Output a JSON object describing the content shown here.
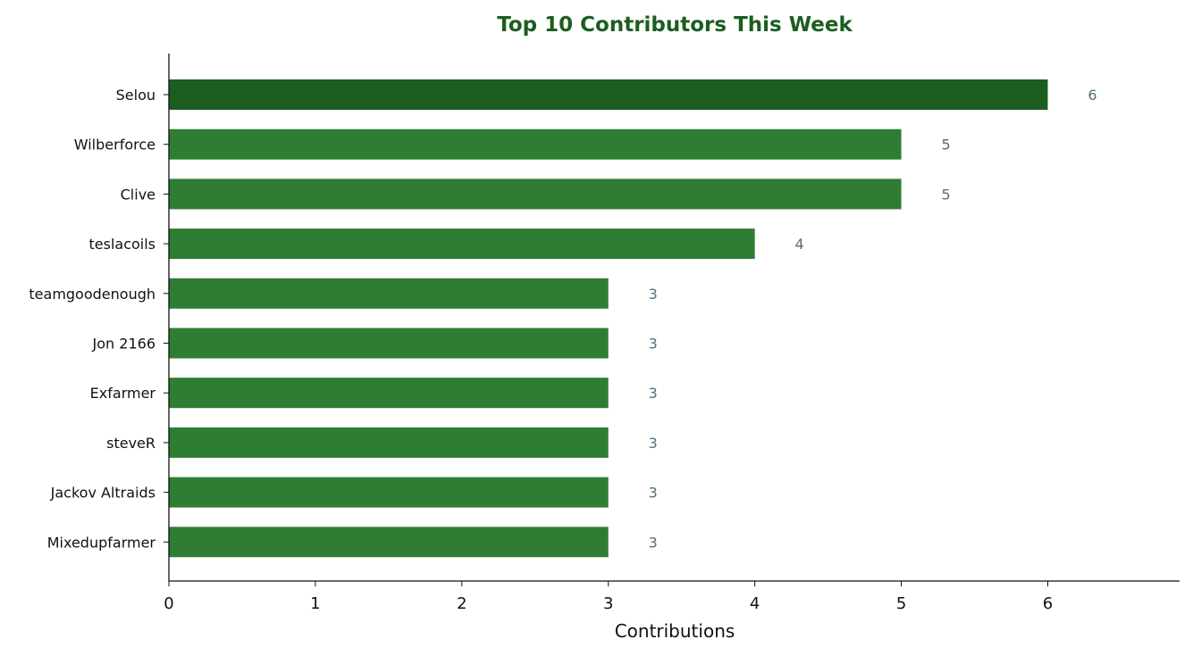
{
  "chart_data": {
    "type": "bar",
    "orientation": "horizontal",
    "title": "Top 10 Contributors This Week",
    "xlabel": "Contributions",
    "ylabel": "",
    "xlim": [
      0,
      6.9
    ],
    "xticks": [
      0,
      1,
      2,
      3,
      4,
      5,
      6
    ],
    "grid": false,
    "legend": "none",
    "categories": [
      "Selou",
      "Wilberforce",
      "Clive",
      "teslacoils",
      "teamgoodenough",
      "Jon 2166",
      "Exfarmer",
      "steveR",
      "Jackov Altraids",
      "Mixedupfarmer"
    ],
    "values": [
      6,
      5,
      5,
      4,
      3,
      3,
      3,
      3,
      3,
      3
    ],
    "data_labels": [
      "6",
      "5",
      "5",
      "4",
      "3",
      "3",
      "3",
      "3",
      "3",
      "3"
    ]
  },
  "colors": {
    "title": "#1b5e20",
    "top_bar": "#1b5e20",
    "bar": "#2e7d32",
    "value_label": "#546e7a",
    "axis": "#111111"
  }
}
